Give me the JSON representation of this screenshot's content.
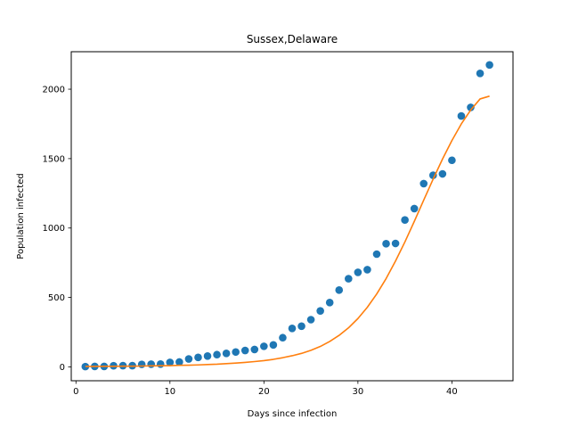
{
  "chart_data": {
    "type": "scatter",
    "title": "Sussex,Delaware",
    "xlabel": "Days since infection",
    "ylabel": "Population infected",
    "xlim": [
      -0.5,
      46.5
    ],
    "ylim": [
      -100,
      2270
    ],
    "xticks": [
      0,
      10,
      20,
      30,
      40
    ],
    "yticks": [
      0,
      500,
      1000,
      1500,
      2000
    ],
    "grid": false,
    "colors": {
      "observed": "#1f77b4",
      "fit": "#ff7f0e"
    },
    "series": [
      {
        "kind": "scatter",
        "x": [
          1,
          2,
          3,
          4,
          5,
          6,
          7,
          8,
          9,
          10,
          11,
          12,
          13,
          14,
          15,
          16,
          17,
          18,
          19,
          20,
          21,
          22,
          23,
          24,
          25,
          26,
          27,
          28,
          29,
          30,
          31,
          32,
          33,
          34,
          35,
          36,
          37,
          38,
          39,
          40,
          41,
          42,
          43,
          44
        ],
        "values": [
          2,
          3,
          3,
          8,
          9,
          9,
          18,
          19,
          20,
          32,
          35,
          57,
          68,
          78,
          88,
          97,
          107,
          118,
          125,
          148,
          158,
          210,
          277,
          293,
          340,
          403,
          463,
          553,
          635,
          681,
          700,
          812,
          887,
          889,
          1058,
          1140,
          1320,
          1380,
          1390,
          1488,
          1807,
          1869,
          2114,
          2175
        ]
      },
      {
        "kind": "line",
        "x": [
          1,
          2,
          3,
          4,
          5,
          6,
          7,
          8,
          9,
          10,
          11,
          12,
          13,
          14,
          15,
          16,
          17,
          18,
          19,
          20,
          21,
          22,
          23,
          24,
          25,
          26,
          27,
          28,
          29,
          30,
          31,
          32,
          33,
          34,
          35,
          36,
          37,
          38,
          39,
          40,
          41,
          42,
          43,
          44
        ],
        "values": [
          3,
          3,
          4,
          4,
          5,
          5,
          6,
          7,
          8,
          9,
          11,
          12,
          14,
          17,
          19,
          23,
          27,
          32,
          38,
          45,
          54,
          66,
          80,
          97,
          119,
          147,
          183,
          227,
          281,
          348,
          429,
          525,
          636,
          762,
          900,
          1048,
          1201,
          1352,
          1497,
          1630,
          1750,
          1850,
          1930,
          1950
        ]
      }
    ]
  }
}
